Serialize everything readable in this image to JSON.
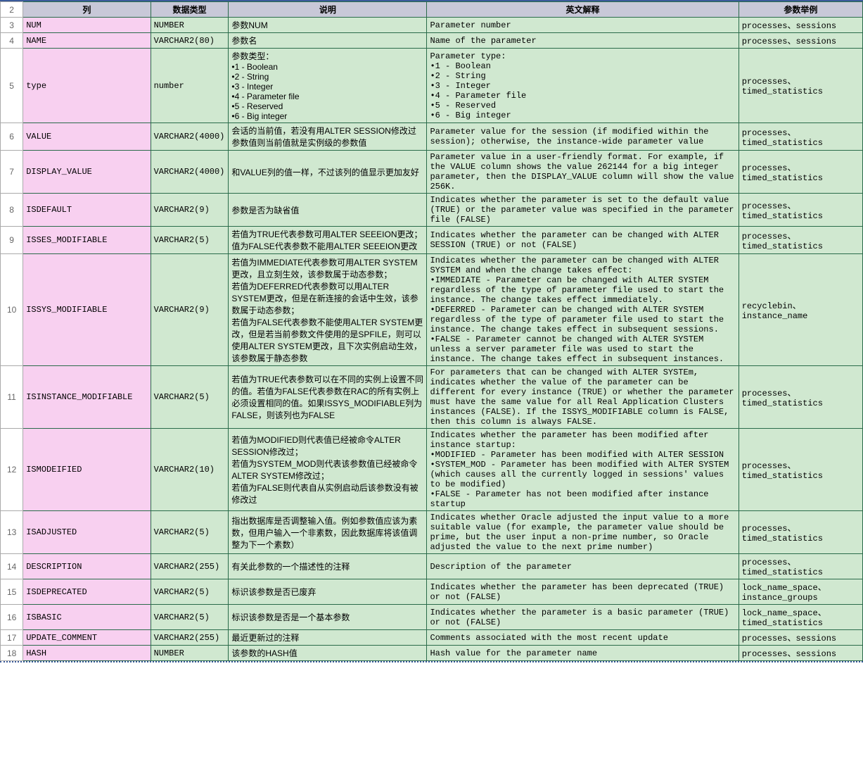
{
  "colors": {
    "header_bg": "#c8c8d8",
    "name_col_bg": "#f8d0f0",
    "data_bg": "#d0e8d0",
    "border": "#2a6b4a",
    "rownum_border": "#aaaaaa",
    "top_rule": "#3a5a9a"
  },
  "columns": [
    "列",
    "数据类型",
    "说明",
    "英文解释",
    "参数举例"
  ],
  "rows": [
    {
      "n": "2"
    },
    {
      "n": "3",
      "name": "NUM",
      "type": "NUMBER",
      "desc": "参数NUM",
      "en": "Parameter number",
      "ex": "processes、sessions"
    },
    {
      "n": "4",
      "name": "NAME",
      "type": "VARCHAR2(80)",
      "desc": "参数名",
      "en": "Name of the parameter",
      "ex": "processes、sessions"
    },
    {
      "n": "5",
      "name": "type",
      "type": "number",
      "desc": "参数类型：\n•1 - Boolean\n•2 - String\n•3 - Integer\n•4 - Parameter file\n•5 - Reserved\n•6 - Big integer",
      "en": "Parameter type:\n•1 - Boolean\n•2 - String\n•3 - Integer\n•4 - Parameter file\n•5 - Reserved\n•6 - Big integer",
      "ex": "processes、timed_statistics"
    },
    {
      "n": "6",
      "name": "VALUE",
      "type": "VARCHAR2(4000)",
      "desc": "会话的当前值，若没有用ALTER SESSION修改过参数值则当前值就是实例级的参数值",
      "en": "Parameter value for the session (if modified within the session); otherwise, the instance-wide parameter value",
      "ex": "processes、timed_statistics"
    },
    {
      "n": "7",
      "name": "DISPLAY_VALUE",
      "type": "VARCHAR2(4000)",
      "desc": "和VALUE列的值一样，不过该列的值显示更加友好",
      "en": "Parameter value in a user-friendly format. For example, if the VALUE column shows the value 262144 for a big integer parameter, then the DISPLAY_VALUE column will show the value 256K.",
      "ex": "processes、timed_statistics"
    },
    {
      "n": "8",
      "name": "ISDEFAULT",
      "type": "VARCHAR2(9)",
      "desc": "参数是否为缺省值",
      "en": "Indicates whether the parameter is set to the default value (TRUE) or the parameter value was specified in the parameter file (FALSE)",
      "ex": "processes、timed_statistics"
    },
    {
      "n": "9",
      "name": "ISSES_MODIFIABLE",
      "type": "VARCHAR2(5)",
      "desc": "若值为TRUE代表参数可用ALTER  SEEEION更改；\n值为FALSE代表参数不能用ALTER  SEEEION更改",
      "en": "Indicates whether the parameter can be changed with ALTER SESSION (TRUE) or not (FALSE)",
      "ex": "processes、timed_statistics"
    },
    {
      "n": "10",
      "name": "ISSYS_MODIFIABLE",
      "type": "VARCHAR2(9)",
      "desc": "若值为IMMEDIATE代表参数可用ALTER SYSTEM更改，且立刻生效，该参数属于动态参数；\n若值为DEFERRED代表参数可以用ALTER SYSTEM更改，但是在新连接的会话中生效，该参数属于动态参数；\n若值为FALSE代表参数不能使用ALTER SYSTEM更改，但是若当前参数文件使用的是SPFILE，则可以使用ALTER SYSTEM更改，且下次实例启动生效，该参数属于静态参数",
      "en": "Indicates whether the parameter can be changed with ALTER SYSTEM and when the change takes effect:\n•IMMEDIATE - Parameter can be changed with ALTER SYSTEM regardless of the type of parameter file used to start the instance. The change takes effect immediately.\n•DEFERRED - Parameter can be changed with ALTER SYSTEM regardless of the type of parameter file used to start the instance. The change takes effect in subsequent sessions.\n•FALSE - Parameter cannot be changed with ALTER SYSTEM unless a server parameter file was used to start the instance. The change takes effect in subsequent instances.",
      "ex": "recyclebin、instance_name"
    },
    {
      "n": "11",
      "name": "ISINSTANCE_MODIFIABLE",
      "type": "VARCHAR2(5)",
      "desc": "若值为TRUE代表参数可以在不同的实例上设置不同的值。若值为FALSE代表参数在RAC的所有实例上必须设置相同的值。如果ISSYS_MODIFIABLE列为FALSE，则该列也为FALSE",
      "en": "For parameters that can be changed with ALTER SYSTEm, indicates whether the value of the parameter can be different for every instance (TRUE) or whether the parameter must have the same value for all Real Application Clusters instances (FALSE). If the ISSYS_MODIFIABLE column is FALSE, then this column is always FALSE.",
      "ex": "processes、timed_statistics"
    },
    {
      "n": "12",
      "name": "ISMODEIFIED",
      "type": "VARCHAR2(10)",
      "desc": "若值为MODIFIED则代表值已经被命令ALTER SESSION修改过；\n若值为SYSTEM_MOD则代表该参数值已经被命令ALTER SYSTEM修改过；\n若值为FALSE则代表自从实例启动后该参数没有被修改过",
      "en": "Indicates whether the parameter has been modified after instance startup:\n•MODIFIED - Parameter has been modified with ALTER SESSION\n•SYSTEM_MOD - Parameter has been modified with ALTER SYSTEM (which causes all the currently logged in sessions' values to be modified)\n•FALSE - Parameter has not been modified after instance startup",
      "ex": "processes、timed_statistics"
    },
    {
      "n": "13",
      "name": "ISADJUSTED",
      "type": "VARCHAR2(5)",
      "desc": "指出数据库是否调整输入值。例如参数值应该为素数，但用户输入一个非素数，因此数据库将该值调整为下一个素数）",
      "en": "Indicates whether Oracle adjusted the input value to a more suitable value (for example, the parameter value should be prime, but the user input a non-prime number, so Oracle adjusted the value to the next prime number)",
      "ex": "processes、timed_statistics"
    },
    {
      "n": "14",
      "name": "DESCRIPTION",
      "type": "VARCHAR2(255)",
      "desc": "有关此参数的一个描述性的注释",
      "en": "Description of the parameter",
      "ex": "processes、timed_statistics"
    },
    {
      "n": "15",
      "name": "ISDEPRECATED",
      "type": "VARCHAR2(5)",
      "desc": "标识该参数是否已废弃",
      "en": "Indicates whether the parameter has been deprecated (TRUE) or not (FALSE)",
      "ex": "lock_name_space、instance_groups"
    },
    {
      "n": "16",
      "name": "ISBASIC",
      "type": "VARCHAR2(5)",
      "desc": "标识该参数是否是一个基本参数",
      "en": "Indicates whether the parameter is a basic parameter (TRUE) or not (FALSE)",
      "ex": "lock_name_space、timed_statistics"
    },
    {
      "n": "17",
      "name": "UPDATE_COMMENT",
      "type": "VARCHAR2(255)",
      "desc": "最近更新过的注释",
      "en": "Comments associated with the most recent update",
      "ex": "processes、sessions"
    },
    {
      "n": "18",
      "name": "HASH",
      "type": "NUMBER",
      "desc": "该参数的HASH值",
      "en": "Hash value for the parameter name",
      "ex": "processes、sessions"
    }
  ]
}
